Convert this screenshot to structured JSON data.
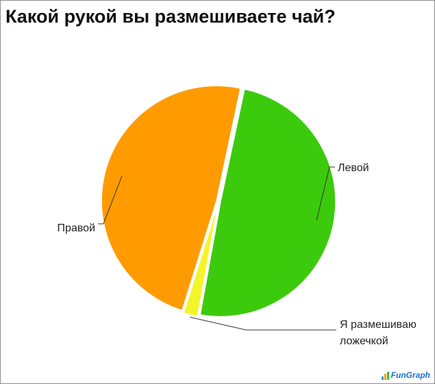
{
  "title": "Какой рукой вы размешиваете чай?",
  "logo_text": "FunGraph",
  "chart_data": {
    "type": "pie",
    "slices": [
      {
        "label": "Левой",
        "value": 49.5,
        "color": "#3ccb0c"
      },
      {
        "label": "Я размешиваю ложечкой",
        "value": 2,
        "color": "#f4f42a"
      },
      {
        "label": "Правой",
        "value": 48.5,
        "color": "#ff9b00"
      }
    ]
  }
}
